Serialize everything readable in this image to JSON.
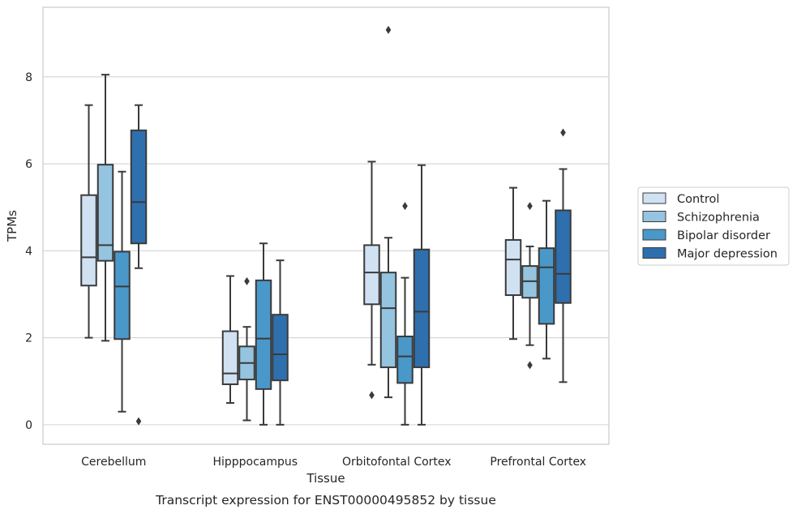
{
  "chart_data": {
    "type": "box",
    "caption": "Transcript expression for ENST00000495852 by tissue",
    "xlabel": "Tissue",
    "ylabel": "TPMs",
    "ylim": [
      -0.45,
      9.6
    ],
    "yticks": [
      0,
      2,
      4,
      6,
      8
    ],
    "grid": "horizontal",
    "legend_position": "right",
    "categories": [
      "Cerebellum",
      "Hipppocampus",
      "Orbitofontal Cortex",
      "Prefrontal Cortex"
    ],
    "series": [
      {
        "name": "Control",
        "color": "#d0e1f2",
        "boxes": [
          {
            "whislo": 2.0,
            "q1": 3.2,
            "med": 3.85,
            "q3": 5.28,
            "whishi": 7.35,
            "fliers": []
          },
          {
            "whislo": 0.5,
            "q1": 0.93,
            "med": 1.18,
            "q3": 2.15,
            "whishi": 3.42,
            "fliers": []
          },
          {
            "whislo": 1.38,
            "q1": 2.77,
            "med": 3.5,
            "q3": 4.13,
            "whishi": 6.05,
            "fliers": [
              0.68
            ]
          },
          {
            "whislo": 1.97,
            "q1": 2.98,
            "med": 3.8,
            "q3": 4.25,
            "whishi": 5.45,
            "fliers": []
          }
        ]
      },
      {
        "name": "Schizophrenia",
        "color": "#94c4df",
        "boxes": [
          {
            "whislo": 1.93,
            "q1": 3.77,
            "med": 4.13,
            "q3": 5.98,
            "whishi": 8.05,
            "fliers": []
          },
          {
            "whislo": 0.1,
            "q1": 1.04,
            "med": 1.42,
            "q3": 1.8,
            "whishi": 2.25,
            "fliers": [
              3.3
            ]
          },
          {
            "whislo": 0.63,
            "q1": 1.32,
            "med": 2.68,
            "q3": 3.5,
            "whishi": 4.3,
            "fliers": [
              9.08
            ]
          },
          {
            "whislo": 1.83,
            "q1": 2.92,
            "med": 3.3,
            "q3": 3.65,
            "whishi": 4.1,
            "fliers": [
              1.37,
              5.03
            ]
          }
        ]
      },
      {
        "name": "Bipolar disorder",
        "color": "#4a98c9",
        "boxes": [
          {
            "whislo": 0.3,
            "q1": 1.97,
            "med": 3.18,
            "q3": 3.98,
            "whishi": 5.82,
            "fliers": []
          },
          {
            "whislo": 0.0,
            "q1": 0.82,
            "med": 1.98,
            "q3": 3.32,
            "whishi": 4.17,
            "fliers": []
          },
          {
            "whislo": 0.0,
            "q1": 0.96,
            "med": 1.57,
            "q3": 2.03,
            "whishi": 3.38,
            "fliers": [
              5.03
            ]
          },
          {
            "whislo": 1.52,
            "q1": 2.32,
            "med": 3.62,
            "q3": 4.06,
            "whishi": 5.15,
            "fliers": []
          }
        ]
      },
      {
        "name": "Major depression",
        "color": "#2e6fae",
        "boxes": [
          {
            "whislo": 3.6,
            "q1": 4.17,
            "med": 5.12,
            "q3": 6.77,
            "whishi": 7.35,
            "fliers": [
              0.08
            ]
          },
          {
            "whislo": 0.0,
            "q1": 1.02,
            "med": 1.62,
            "q3": 2.53,
            "whishi": 3.78,
            "fliers": []
          },
          {
            "whislo": 0.0,
            "q1": 1.32,
            "med": 2.6,
            "q3": 4.03,
            "whishi": 5.97,
            "fliers": []
          },
          {
            "whislo": 0.98,
            "q1": 2.8,
            "med": 3.47,
            "q3": 4.93,
            "whishi": 5.88,
            "fliers": [
              6.72
            ]
          }
        ]
      }
    ]
  }
}
